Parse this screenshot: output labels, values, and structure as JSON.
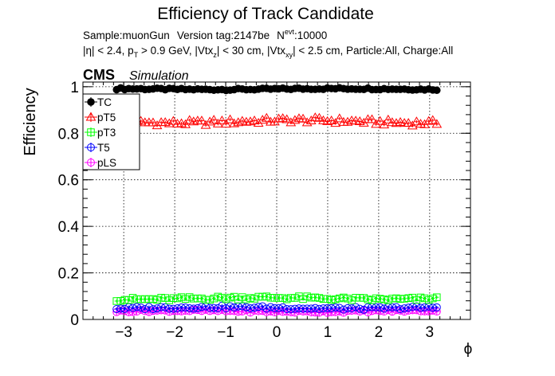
{
  "chart_data": {
    "type": "scatter",
    "title": "Efficiency of Track Candidate",
    "info_line1": {
      "sample": "Sample:muonGun",
      "version": "Version tag:2147be",
      "nevt_label": "N",
      "nevt_sub": "evt",
      "nevt_value": ":10000"
    },
    "info_line2": {
      "eta": "|η| < 2.4, p",
      "pt_sub": "T",
      "pt_cut": " > 0.9 GeV, |Vtx",
      "vtxz_sub": "z",
      "vtxz_cut": "| < 30 cm, |Vtx",
      "vtxxy_sub": "xy",
      "rest": "| < 2.5 cm, Particle:All, Charge:All"
    },
    "cms_label": "CMS",
    "cms_sub": "Simulation",
    "xlabel": "ϕ",
    "ylabel": "Efficiency",
    "xlim": [
      -3.8,
      3.8
    ],
    "ylim": [
      0,
      1.02
    ],
    "x_ticks": [
      -3,
      -2,
      -1,
      0,
      1,
      2,
      3
    ],
    "x_tick_labels": [
      "−3",
      "−2",
      "−1",
      "0",
      "1",
      "2",
      "3"
    ],
    "y_ticks": [
      0,
      0.2,
      0.4,
      0.6,
      0.8,
      1
    ],
    "y_tick_labels": [
      "0",
      "0.2",
      "0.4",
      "0.6",
      "0.8",
      "1"
    ],
    "grid": true,
    "legend_position": "top-left",
    "x_range": [
      -3.14,
      3.14
    ],
    "n_points": 80,
    "series": [
      {
        "name": "TC",
        "marker": "filled-circle",
        "color": "#000000",
        "center": 0.99,
        "spread": 0.004
      },
      {
        "name": "pT5",
        "marker": "open-triangle",
        "color": "#ff0000",
        "center": 0.85,
        "spread": 0.012
      },
      {
        "name": "pT3",
        "marker": "open-square",
        "color": "#00ff00",
        "center": 0.09,
        "spread": 0.008
      },
      {
        "name": "T5",
        "marker": "open-circle",
        "color": "#0000ff",
        "center": 0.05,
        "spread": 0.006
      },
      {
        "name": "pLS",
        "marker": "open-circle-cross",
        "color": "#ff00ff",
        "center": 0.035,
        "spread": 0.005
      }
    ]
  }
}
